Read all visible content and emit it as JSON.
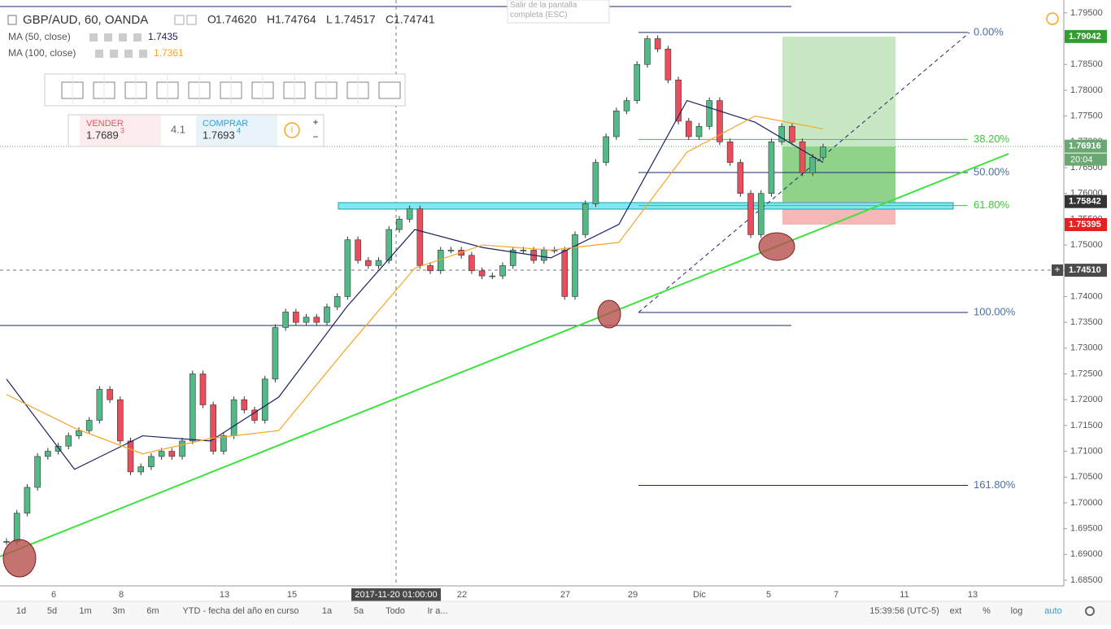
{
  "header": {
    "symbol": "GBP/AUD, 60, OANDA",
    "ohlc": [
      {
        "prefix": "O",
        "value": "1.74620"
      },
      {
        "prefix": "H",
        "value": "1.74764"
      },
      {
        "prefix": "L",
        "value": "1.74517"
      },
      {
        "prefix": "C",
        "value": "1.74741"
      }
    ]
  },
  "exit_notice": "Salir de la pantalla completa (ESC)",
  "trade_panel": {
    "sell_label": "VENDER",
    "sell_price": "1.7689",
    "sell_pip": "3",
    "spread": "4.1",
    "buy_label": "COMPRAR",
    "buy_price": "1.7693",
    "buy_pip": "4"
  },
  "toolbar": {
    "ranges": [
      "1d",
      "5d",
      "1m",
      "3m",
      "6m",
      "YTD - fecha del año en curso",
      "1a",
      "5a",
      "Todo",
      "Ir a..."
    ],
    "clock": "15:39:56 (UTC-5)",
    "options": [
      "ext",
      "%",
      "log",
      "auto"
    ]
  },
  "chart_data": {
    "type": "candlestick",
    "closes": [
      1.6925,
      1.698,
      1.703,
      1.709,
      1.71,
      1.711,
      1.713,
      1.714,
      1.716,
      1.722,
      1.72,
      1.712,
      1.706,
      1.707,
      1.709,
      1.71,
      1.709,
      1.712,
      1.725,
      1.719,
      1.71,
      1.713,
      1.72,
      1.718,
      1.716,
      1.724,
      1.734,
      1.737,
      1.735,
      1.736,
      1.735,
      1.738,
      1.74,
      1.751,
      1.747,
      1.746,
      1.747,
      1.753,
      1.755,
      1.757,
      1.746,
      1.745,
      1.749,
      1.749,
      1.748,
      1.745,
      1.744,
      1.744,
      1.746,
      1.749,
      1.749,
      1.747,
      1.749,
      1.749,
      1.74,
      1.752,
      1.758,
      1.766,
      1.771,
      1.776,
      1.778,
      1.785,
      1.79,
      1.788,
      1.782,
      1.774,
      1.771,
      1.773,
      1.778,
      1.77,
      1.766,
      1.76,
      1.752,
      1.76,
      1.77,
      1.773,
      1.77,
      1.764,
      1.767,
      1.769
    ],
    "up_color": "#53b987",
    "down_color": "#eb4d5c",
    "ma_series": [
      {
        "name": "MA (50, close)",
        "color": "#1c2260",
        "last": 1.7435,
        "values": [
          1.724,
          1.7065,
          1.713,
          1.712,
          1.7205,
          1.738,
          1.753,
          1.7495,
          1.7475,
          1.754,
          1.778,
          1.7738,
          1.766
        ]
      },
      {
        "name": "MA (100, close)",
        "color": "#f5a623",
        "last": 1.7361,
        "values": [
          1.721,
          1.7145,
          1.7095,
          1.7125,
          1.714,
          1.73,
          1.7455,
          1.75,
          1.749,
          1.7505,
          1.768,
          1.775,
          1.7725
        ]
      }
    ],
    "ylim": [
      1.6839,
      1.7975
    ],
    "yticks": [
      {
        "value": 1.685,
        "label": "1.68500"
      },
      {
        "value": 1.69,
        "label": "1.69000"
      },
      {
        "value": 1.695,
        "label": "1.69500"
      },
      {
        "value": 1.7,
        "label": "1.70000"
      },
      {
        "value": 1.705,
        "label": "1.70500"
      },
      {
        "value": 1.71,
        "label": "1.71000"
      },
      {
        "value": 1.715,
        "label": "1.71500"
      },
      {
        "value": 1.72,
        "label": "1.72000"
      },
      {
        "value": 1.725,
        "label": "1.72500"
      },
      {
        "value": 1.73,
        "label": "1.73000"
      },
      {
        "value": 1.735,
        "label": "1.73500"
      },
      {
        "value": 1.74,
        "label": "1.74000"
      },
      {
        "value": 1.745,
        "label": "1.74500"
      },
      {
        "value": 1.75,
        "label": "1.75000"
      },
      {
        "value": 1.755,
        "label": "1.75500"
      },
      {
        "value": 1.76,
        "label": "1.76000"
      },
      {
        "value": 1.765,
        "label": "1.76500"
      },
      {
        "value": 1.77,
        "label": "1.77000"
      },
      {
        "value": 1.775,
        "label": "1.77500"
      },
      {
        "value": 1.78,
        "label": "1.78000"
      },
      {
        "value": 1.785,
        "label": "1.78500"
      },
      {
        "value": 1.79,
        "label": "1.79000"
      },
      {
        "value": 1.795,
        "label": "1.79500"
      }
    ],
    "x_labels": [
      "6",
      "8",
      "13",
      "15",
      "2017-11-20 01:00:00",
      "22",
      "27",
      "29",
      "Dic",
      "5",
      "7",
      "11",
      "13"
    ],
    "fib_levels": [
      {
        "price": 1.7912,
        "label": "0.00%",
        "color": "#4a6fa5"
      },
      {
        "price": 1.77047,
        "label": "38.20%",
        "color": "#3cc83c"
      },
      {
        "price": 1.76406,
        "label": "50.00%",
        "color": "#4a6fa5"
      },
      {
        "price": 1.75765,
        "label": "61.80%",
        "color": "#3cc83c"
      },
      {
        "price": 1.73692,
        "label": "100.00%",
        "color": "#4a6fa5"
      },
      {
        "price": 1.70338,
        "label": "161.80%",
        "color": "#4a6fa5"
      }
    ],
    "price_markers": [
      {
        "value": 1.79042,
        "label": "1.79042",
        "color": "#2e9e2e"
      },
      {
        "value": 1.76916,
        "label": "1.76916",
        "color": "#6aa872"
      },
      {
        "value": 1.75842,
        "label": "1.75842",
        "color": "#333"
      },
      {
        "value": 1.75395,
        "label": "1.75395",
        "color": "#e8201d"
      },
      {
        "value": 1.7451,
        "label": "1.74510",
        "color": "#4a4a4a"
      }
    ],
    "countdown": "20:04"
  }
}
